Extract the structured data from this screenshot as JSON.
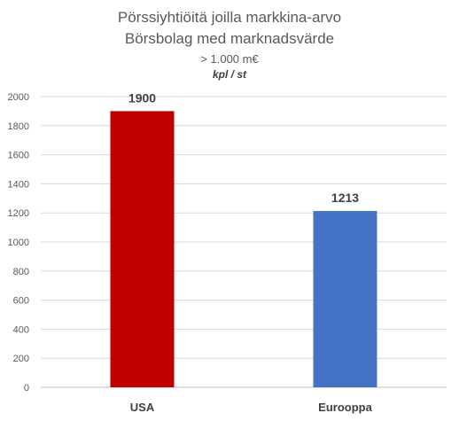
{
  "chart_data": {
    "type": "bar",
    "title": "Pörssiyhtiöitä joilla markkina-arvo",
    "title_line2": "Börsbolag med marknadsvärde",
    "subtitle": "> 1.000 m€",
    "unit_label": "kpl / st",
    "categories": [
      "USA",
      "Eurooppa"
    ],
    "values": [
      1900,
      1213
    ],
    "data_labels": [
      "1900",
      "1213"
    ],
    "bar_colors": [
      "#c00000",
      "#4472c4"
    ],
    "ylim": [
      0,
      2000
    ],
    "yticks": [
      "0",
      "200",
      "400",
      "600",
      "800",
      "1000",
      "1200",
      "1400",
      "1600",
      "1800",
      "2000"
    ],
    "grid": true,
    "legend": "none"
  }
}
